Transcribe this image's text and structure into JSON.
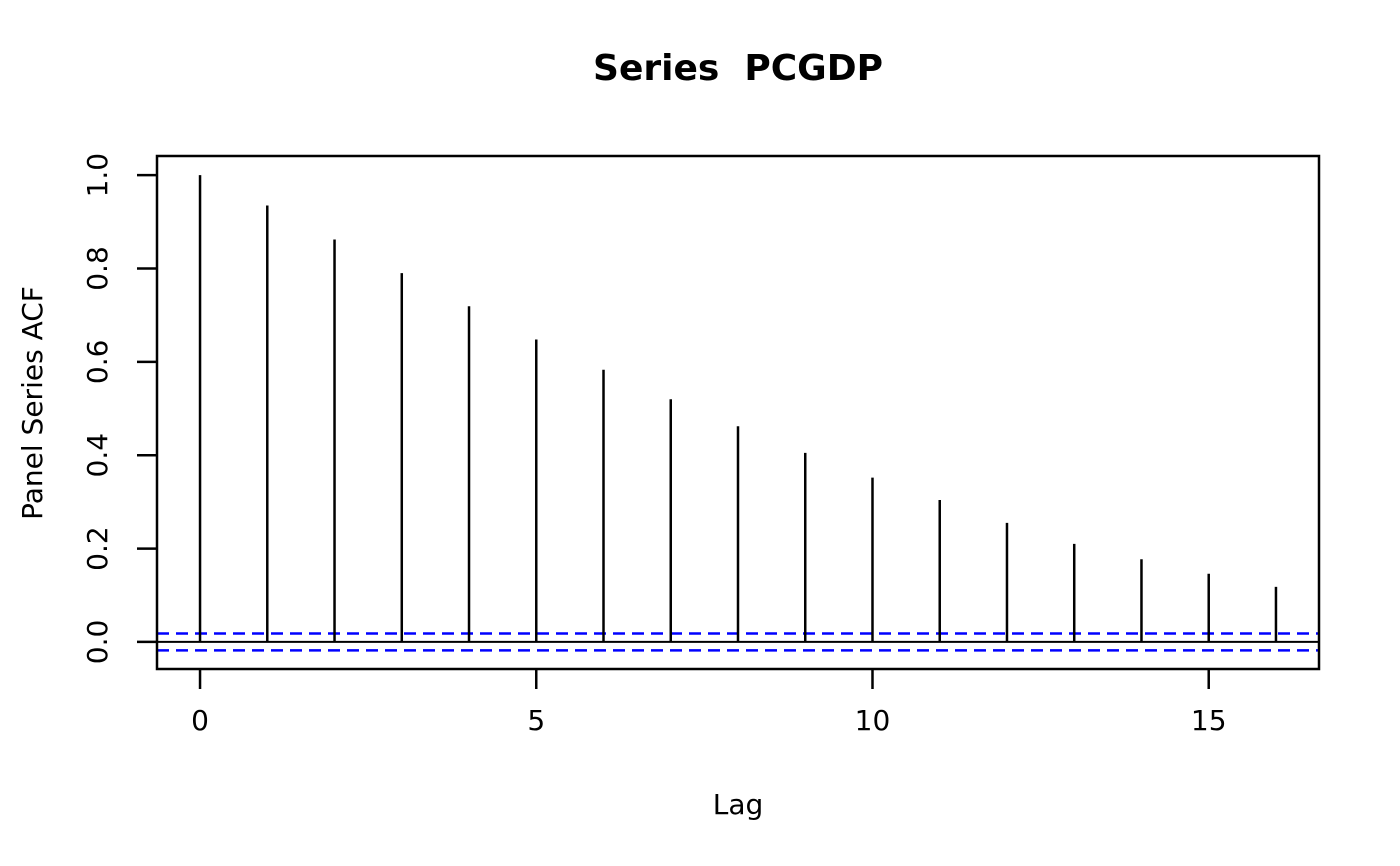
{
  "chart_data": {
    "type": "bar",
    "subtype": "acf-stem-plot",
    "title": "Series  PCGDP",
    "xlabel": "Lag",
    "ylabel": "Panel Series ACF",
    "lags": [
      0,
      1,
      2,
      3,
      4,
      5,
      6,
      7,
      8,
      9,
      10,
      11,
      12,
      13,
      14,
      15,
      16
    ],
    "values": [
      1.0,
      0.935,
      0.862,
      0.79,
      0.719,
      0.648,
      0.583,
      0.52,
      0.462,
      0.405,
      0.352,
      0.304,
      0.255,
      0.21,
      0.177,
      0.146,
      0.118
    ],
    "confidence_interval": 0.018,
    "zero_line": true,
    "x_ticks": [
      0,
      5,
      10,
      15
    ],
    "x_tick_labels": [
      "0",
      "5",
      "10",
      "15"
    ],
    "y_ticks": [
      0.0,
      0.2,
      0.4,
      0.6,
      0.8,
      1.0
    ],
    "y_tick_labels": [
      "0.0",
      "0.2",
      "0.4",
      "0.6",
      "0.8",
      "1.0"
    ],
    "xlim": [
      -0.64,
      16.64
    ],
    "ylim": [
      -0.058,
      1.041
    ],
    "grid": "off",
    "legend": "none",
    "bar_color": "#000000",
    "zero_line_color": "#000000",
    "ci_line_color": "#0000ff",
    "ci_line_style": "dashed",
    "background_color": "#ffffff",
    "text_color": "#000000"
  }
}
